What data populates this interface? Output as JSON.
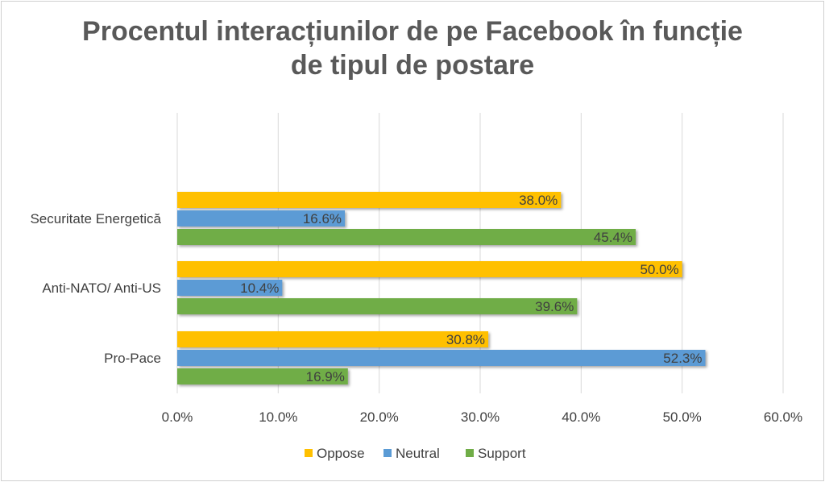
{
  "chart_data": {
    "type": "bar",
    "orientation": "horizontal",
    "title_lines": [
      "Procentul interacțiunilor de pe Facebook în funcție",
      "de tipul de postare"
    ],
    "categories": [
      "Securitate Energetică",
      "Anti-NATO/ Anti-US",
      "Pro-Pace"
    ],
    "series": [
      {
        "name": "Oppose",
        "color": "#ffc000",
        "values": [
          38.0,
          50.0,
          30.8
        ],
        "labels": [
          "38.0%",
          "50.0%",
          "30.8%"
        ]
      },
      {
        "name": "Neutral",
        "color": "#5b9bd5",
        "values": [
          16.6,
          10.4,
          52.3
        ],
        "labels": [
          "16.6%",
          "10.4%",
          "52.3%"
        ]
      },
      {
        "name": "Support",
        "color": "#70ad47",
        "values": [
          45.4,
          39.6,
          16.9
        ],
        "labels": [
          "45.4%",
          "39.6%",
          "16.9%"
        ]
      }
    ],
    "xlim": [
      0,
      60
    ],
    "xticks": [
      "0.0%",
      "10.0%",
      "20.0%",
      "30.0%",
      "40.0%",
      "50.0%",
      "60.0%"
    ],
    "grid": true,
    "legend_position": "bottom"
  }
}
